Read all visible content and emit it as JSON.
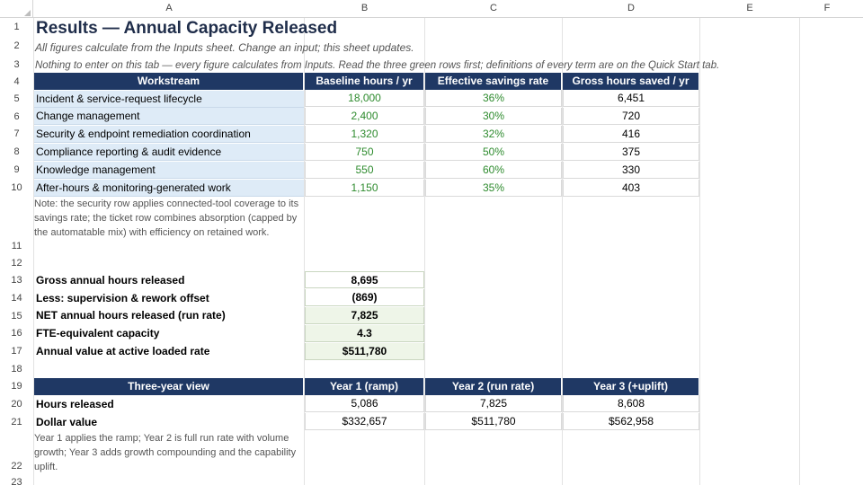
{
  "columns": [
    "A",
    "B",
    "C",
    "D",
    "E",
    "F"
  ],
  "rows": [
    "1",
    "2",
    "3",
    "4",
    "5",
    "6",
    "7",
    "8",
    "9",
    "10",
    "11",
    "12",
    "13",
    "14",
    "15",
    "16",
    "17",
    "18",
    "19",
    "20",
    "21",
    "22",
    "23"
  ],
  "title": "Results — Annual Capacity Released",
  "subtitle": "All figures calculate from the Inputs sheet. Change an input; this sheet updates.",
  "instruction": "Nothing to enter on this tab — every figure calculates from Inputs. Read the three green rows first; definitions of every term are on the Quick Start tab.",
  "workstream_table": {
    "headers": [
      "Workstream",
      "Baseline hours / yr",
      "Effective savings rate",
      "Gross hours saved / yr"
    ],
    "rows": [
      {
        "label": "Incident & service-request lifecycle",
        "baseline": "18,000",
        "rate": "36%",
        "saved": "6,451"
      },
      {
        "label": "Change management",
        "baseline": "2,400",
        "rate": "30%",
        "saved": "720"
      },
      {
        "label": "Security & endpoint remediation coordination",
        "baseline": "1,320",
        "rate": "32%",
        "saved": "416"
      },
      {
        "label": "Compliance reporting & audit evidence",
        "baseline": "750",
        "rate": "50%",
        "saved": "375"
      },
      {
        "label": "Knowledge management",
        "baseline": "550",
        "rate": "60%",
        "saved": "330"
      },
      {
        "label": "After-hours & monitoring-generated work",
        "baseline": "1,150",
        "rate": "35%",
        "saved": "403"
      }
    ],
    "note": "Note: the security row applies connected-tool coverage to its savings rate; the ticket row combines absorption (capped by the automatable mix) with efficiency on retained work."
  },
  "summary": [
    {
      "label": "Gross annual hours released",
      "value": "8,695"
    },
    {
      "label": "Less: supervision & rework offset",
      "value": "(869)"
    },
    {
      "label": "NET annual hours released (run rate)",
      "value": "7,825"
    },
    {
      "label": "FTE-equivalent capacity",
      "value": "4.3"
    },
    {
      "label": "Annual value at active loaded rate",
      "value": "$511,780"
    }
  ],
  "three_year": {
    "headers": [
      "Three-year view",
      "Year 1 (ramp)",
      "Year 2 (run rate)",
      "Year 3 (+uplift)"
    ],
    "rows": [
      {
        "label": "Hours released",
        "y1": "5,086",
        "y2": "7,825",
        "y3": "8,608"
      },
      {
        "label": "Dollar value",
        "y1": "$332,657",
        "y2": "$511,780",
        "y3": "$562,958"
      }
    ],
    "note": "Year 1 applies the ramp; Year 2 is full run rate with volume growth; Year 3 adds growth compounding and the capability uplift."
  }
}
